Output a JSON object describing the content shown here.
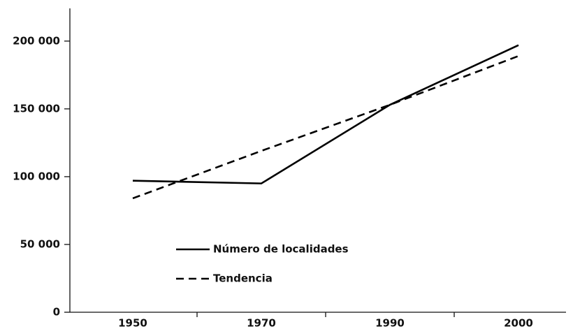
{
  "chart_data": {
    "type": "line",
    "categories": [
      "1950",
      "1970",
      "1990",
      "2000"
    ],
    "series": [
      {
        "name": "Número de localidades",
        "color": "#000000",
        "dashed": false,
        "values": [
          97000,
          95000,
          153000,
          197000
        ]
      },
      {
        "name": "Tendencia",
        "color": "#000000",
        "dashed": true,
        "values": [
          84000,
          119000,
          153000,
          189000
        ]
      }
    ],
    "ylim": [
      0,
      220000
    ],
    "yticks": [
      0,
      {
        "value": 50000,
        "label": "50 000"
      },
      {
        "value": 100000,
        "label": "100 000"
      },
      {
        "value": 150000,
        "label": "150 000"
      },
      {
        "value": 200000,
        "label": "200 000"
      }
    ],
    "grid": false
  }
}
